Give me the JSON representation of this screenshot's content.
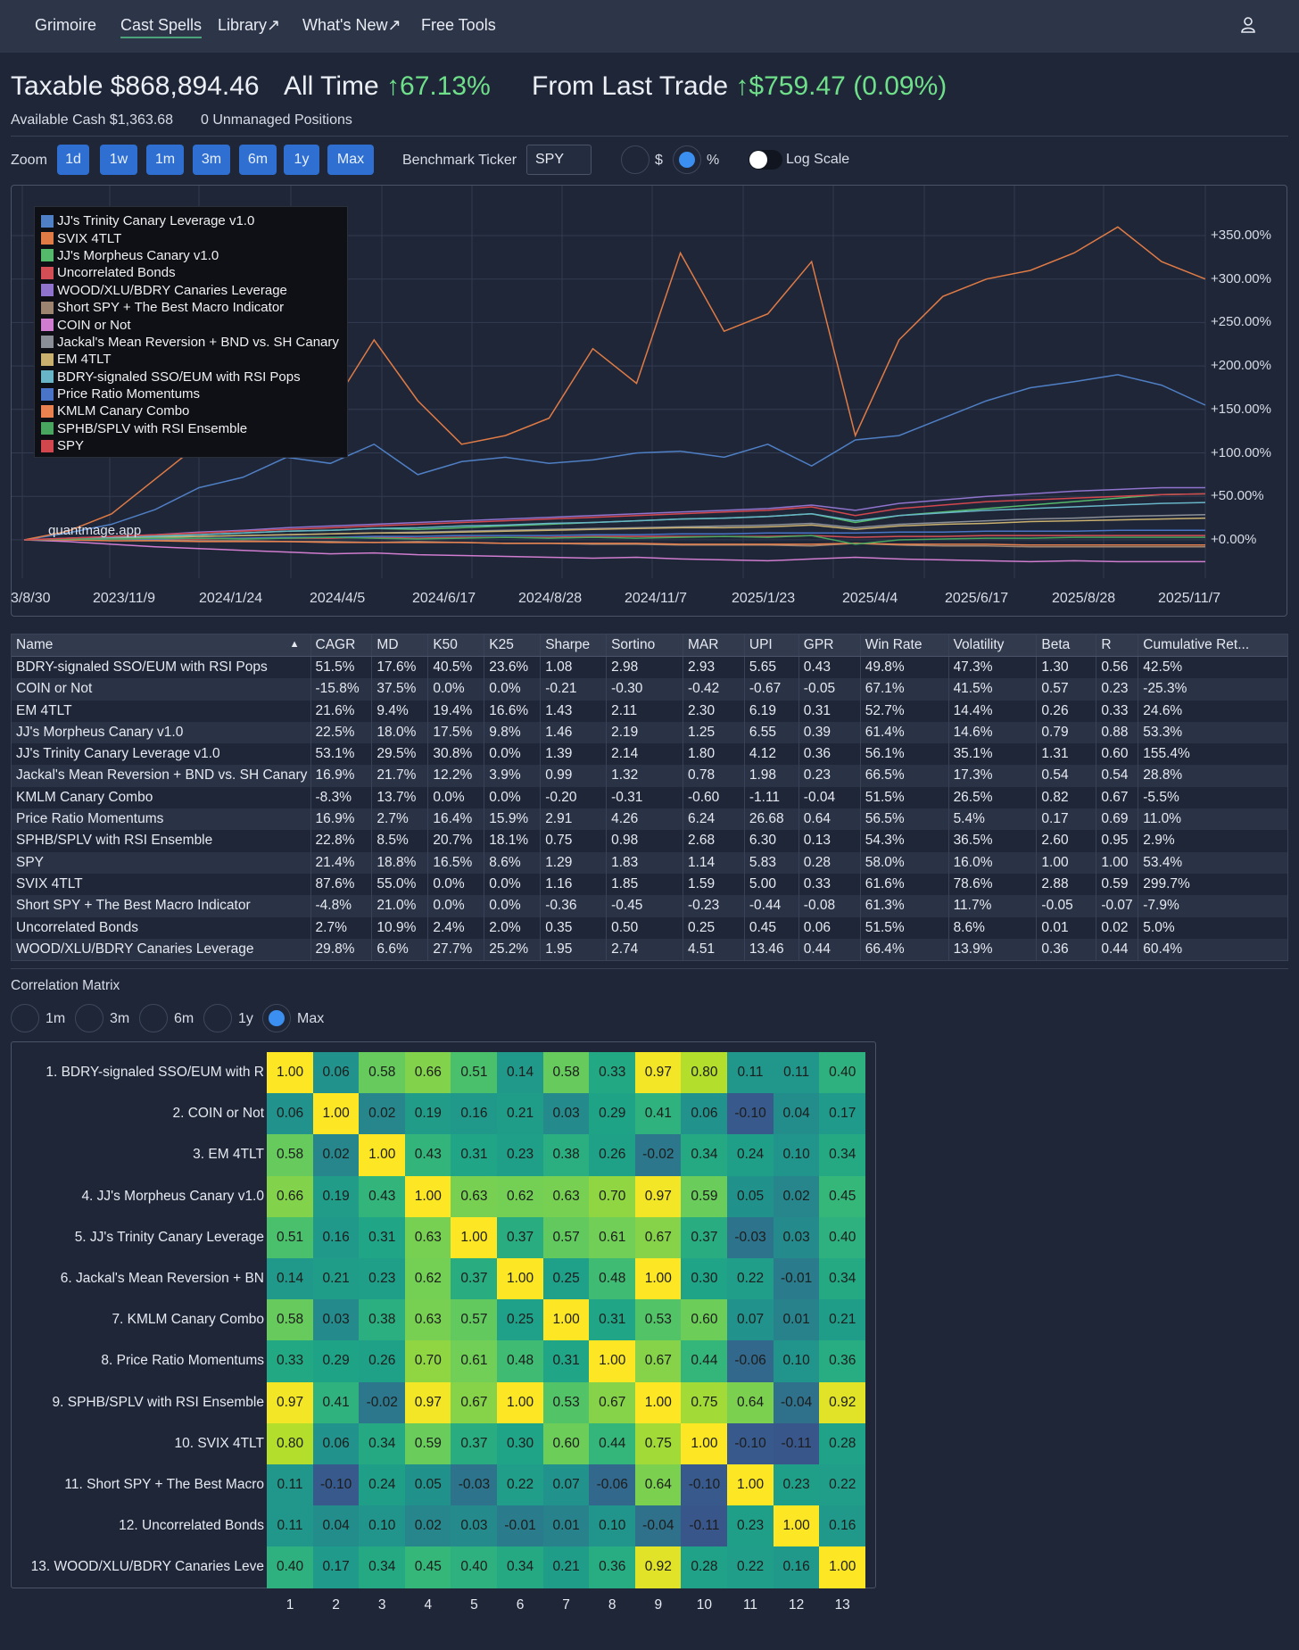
{
  "nav": {
    "items": [
      "Grimoire",
      "Cast Spells",
      "Library↗",
      "What's New↗",
      "Free Tools"
    ],
    "active": "Cast Spells",
    "user_icon": "user-icon"
  },
  "header": {
    "account_label": "Taxable",
    "account_value": "$868,894.46",
    "all_time_label": "All Time",
    "all_time_value": "67.13%",
    "last_trade_label": "From Last Trade",
    "last_trade_value": "$759.47 (0.09%)",
    "up_arrow": "↑",
    "available_cash": "Available Cash $1,363.68",
    "unmanaged": "0 Unmanaged Positions"
  },
  "controls": {
    "zoom_label": "Zoom",
    "zoom_options": [
      "1d",
      "1w",
      "1m",
      "3m",
      "6m",
      "1y",
      "Max"
    ],
    "benchmark_label": "Benchmark Ticker",
    "benchmark_value": "SPY",
    "mode_dollar": "$",
    "mode_percent": "%",
    "mode_selected": "%",
    "log_scale_label": "Log Scale",
    "log_scale_on": false
  },
  "chart_data": {
    "type": "line",
    "x_ticks": [
      "3/8/30",
      "2023/11/9",
      "2024/1/24",
      "2024/4/5",
      "2024/6/17",
      "2024/8/28",
      "2024/11/7",
      "2025/1/23",
      "2025/4/4",
      "2025/6/17",
      "2025/8/28",
      "2025/11/7"
    ],
    "y_ticks": [
      "+350.00%",
      "+300.00%",
      "+250.00%",
      "+200.00%",
      "+150.00%",
      "+100.00%",
      "+50.00%",
      "+0.00%"
    ],
    "ylim": [
      -30,
      380
    ],
    "watermark": "quantmage.app",
    "series": [
      {
        "name": "JJ's Trinity Canary Leverage v1.0",
        "color": "#4f7fc4",
        "values": [
          0,
          8,
          18,
          35,
          60,
          72,
          95,
          88,
          110,
          75,
          90,
          95,
          88,
          92,
          100,
          102,
          95,
          110,
          85,
          115,
          120,
          140,
          160,
          175,
          182,
          190,
          178,
          155
        ]
      },
      {
        "name": "SVIX 4TLT",
        "color": "#e07b45",
        "values": [
          0,
          10,
          30,
          70,
          110,
          140,
          180,
          150,
          230,
          160,
          110,
          120,
          140,
          220,
          180,
          330,
          240,
          260,
          320,
          120,
          230,
          280,
          300,
          310,
          330,
          360,
          320,
          300
        ]
      },
      {
        "name": "JJ's Morpheus Canary v1.0",
        "color": "#54b96a",
        "values": [
          0,
          1,
          3,
          5,
          6,
          8,
          10,
          11,
          13,
          12,
          14,
          16,
          18,
          20,
          22,
          24,
          25,
          27,
          30,
          20,
          28,
          32,
          36,
          40,
          44,
          48,
          52,
          53
        ]
      },
      {
        "name": "Uncorrelated Bonds",
        "color": "#d44f55",
        "values": [
          0,
          0,
          1,
          1,
          1,
          2,
          2,
          2,
          3,
          2,
          3,
          3,
          3,
          4,
          4,
          4,
          4,
          4,
          5,
          3,
          4,
          4,
          5,
          5,
          5,
          5,
          5,
          5
        ]
      },
      {
        "name": "WOOD/XLU/BDRY Canaries Leverage",
        "color": "#8f73cc",
        "values": [
          0,
          2,
          4,
          6,
          9,
          11,
          14,
          16,
          18,
          20,
          22,
          24,
          26,
          28,
          30,
          32,
          34,
          36,
          40,
          34,
          42,
          46,
          50,
          53,
          56,
          58,
          60,
          60
        ]
      },
      {
        "name": "Short SPY + The Best Macro Indicator",
        "color": "#9c8470",
        "values": [
          0,
          1,
          1,
          0,
          -1,
          -1,
          -2,
          -2,
          -3,
          -2,
          -3,
          -4,
          -4,
          -5,
          -5,
          -6,
          -6,
          -6,
          -7,
          -4,
          -6,
          -7,
          -7,
          -8,
          -8,
          -8,
          -8,
          -8
        ]
      },
      {
        "name": "COIN or Not",
        "color": "#d07ccf",
        "values": [
          0,
          -2,
          -5,
          -8,
          -10,
          -12,
          -14,
          -16,
          -15,
          -17,
          -18,
          -19,
          -20,
          -21,
          -20,
          -22,
          -23,
          -24,
          -22,
          -20,
          -22,
          -23,
          -24,
          -25,
          -24,
          -25,
          -25,
          -25
        ]
      },
      {
        "name": "Jackal's Mean Reversion + BND vs. SH Canary",
        "color": "#8a8e96",
        "values": [
          0,
          1,
          2,
          3,
          4,
          5,
          6,
          7,
          8,
          9,
          10,
          11,
          12,
          13,
          14,
          15,
          16,
          17,
          19,
          14,
          18,
          20,
          22,
          24,
          25,
          27,
          28,
          29
        ]
      },
      {
        "name": "EM 4TLT",
        "color": "#c9b06e",
        "values": [
          0,
          1,
          2,
          3,
          4,
          5,
          6,
          7,
          8,
          8,
          9,
          10,
          11,
          12,
          13,
          14,
          14,
          15,
          17,
          12,
          16,
          18,
          19,
          21,
          22,
          23,
          24,
          25
        ]
      },
      {
        "name": "BDRY-signaled SSO/EUM with RSI Pops",
        "color": "#67b5c7",
        "values": [
          0,
          1,
          3,
          4,
          6,
          8,
          10,
          11,
          13,
          14,
          16,
          17,
          19,
          20,
          22,
          24,
          25,
          27,
          30,
          22,
          28,
          31,
          34,
          36,
          38,
          40,
          42,
          43
        ]
      },
      {
        "name": "Price Ratio Momentums",
        "color": "#4a74c7",
        "values": [
          0,
          0,
          1,
          1,
          2,
          2,
          3,
          3,
          4,
          4,
          5,
          5,
          5,
          6,
          6,
          7,
          7,
          8,
          8,
          8,
          9,
          9,
          10,
          10,
          10,
          11,
          11,
          11
        ]
      },
      {
        "name": "KMLM Canary Combo",
        "color": "#e9824f",
        "values": [
          0,
          0,
          -1,
          -1,
          -2,
          -2,
          -2,
          -3,
          -3,
          -3,
          -3,
          -4,
          -4,
          -4,
          -4,
          -5,
          -5,
          -5,
          -5,
          -4,
          -5,
          -5,
          -5,
          -6,
          -6,
          -6,
          -6,
          -6
        ]
      },
      {
        "name": "SPHB/SPLV with RSI Ensemble",
        "color": "#48a65e",
        "values": [
          0,
          1,
          1,
          2,
          2,
          1,
          2,
          3,
          2,
          1,
          2,
          3,
          2,
          3,
          2,
          3,
          4,
          3,
          5,
          -5,
          0,
          1,
          2,
          2,
          3,
          3,
          3,
          3
        ]
      },
      {
        "name": "SPY",
        "color": "#d2474e",
        "values": [
          0,
          2,
          4,
          6,
          8,
          10,
          12,
          14,
          16,
          18,
          20,
          22,
          24,
          26,
          28,
          30,
          32,
          34,
          38,
          28,
          36,
          40,
          44,
          46,
          48,
          50,
          52,
          53
        ]
      }
    ]
  },
  "stats": {
    "columns": [
      "Name",
      "CAGR",
      "MD",
      "K50",
      "K25",
      "Sharpe",
      "Sortino",
      "MAR",
      "UPI",
      "GPR",
      "Win Rate",
      "Volatility",
      "Beta",
      "R",
      "Cumulative Ret..."
    ],
    "sort_icon": "sort-asc-icon",
    "rows": [
      [
        "BDRY-signaled SSO/EUM with RSI Pops",
        "51.5%",
        "17.6%",
        "40.5%",
        "23.6%",
        "1.08",
        "2.98",
        "2.93",
        "5.65",
        "0.43",
        "49.8%",
        "47.3%",
        "1.30",
        "0.56",
        "42.5%"
      ],
      [
        "COIN or Not",
        "-15.8%",
        "37.5%",
        "0.0%",
        "0.0%",
        "-0.21",
        "-0.30",
        "-0.42",
        "-0.67",
        "-0.05",
        "67.1%",
        "41.5%",
        "0.57",
        "0.23",
        "-25.3%"
      ],
      [
        "EM 4TLT",
        "21.6%",
        "9.4%",
        "19.4%",
        "16.6%",
        "1.43",
        "2.11",
        "2.30",
        "6.19",
        "0.31",
        "52.7%",
        "14.4%",
        "0.26",
        "0.33",
        "24.6%"
      ],
      [
        "JJ's Morpheus Canary v1.0",
        "22.5%",
        "18.0%",
        "17.5%",
        "9.8%",
        "1.46",
        "2.19",
        "1.25",
        "6.55",
        "0.39",
        "61.4%",
        "14.6%",
        "0.79",
        "0.88",
        "53.3%"
      ],
      [
        "JJ's Trinity Canary Leverage v1.0",
        "53.1%",
        "29.5%",
        "30.8%",
        "0.0%",
        "1.39",
        "2.14",
        "1.80",
        "4.12",
        "0.36",
        "56.1%",
        "35.1%",
        "1.31",
        "0.60",
        "155.4%"
      ],
      [
        "Jackal's Mean Reversion + BND vs. SH Canary",
        "16.9%",
        "21.7%",
        "12.2%",
        "3.9%",
        "0.99",
        "1.32",
        "0.78",
        "1.98",
        "0.23",
        "66.5%",
        "17.3%",
        "0.54",
        "0.54",
        "28.8%"
      ],
      [
        "KMLM Canary Combo",
        "-8.3%",
        "13.7%",
        "0.0%",
        "0.0%",
        "-0.20",
        "-0.31",
        "-0.60",
        "-1.11",
        "-0.04",
        "51.5%",
        "26.5%",
        "0.82",
        "0.67",
        "-5.5%"
      ],
      [
        "Price Ratio Momentums",
        "16.9%",
        "2.7%",
        "16.4%",
        "15.9%",
        "2.91",
        "4.26",
        "6.24",
        "26.68",
        "0.64",
        "56.5%",
        "5.4%",
        "0.17",
        "0.69",
        "11.0%"
      ],
      [
        "SPHB/SPLV with RSI Ensemble",
        "22.8%",
        "8.5%",
        "20.7%",
        "18.1%",
        "0.75",
        "0.98",
        "2.68",
        "6.30",
        "0.13",
        "54.3%",
        "36.5%",
        "2.60",
        "0.95",
        "2.9%"
      ],
      [
        "SPY",
        "21.4%",
        "18.8%",
        "16.5%",
        "8.6%",
        "1.29",
        "1.83",
        "1.14",
        "5.83",
        "0.28",
        "58.0%",
        "16.0%",
        "1.00",
        "1.00",
        "53.4%"
      ],
      [
        "SVIX 4TLT",
        "87.6%",
        "55.0%",
        "0.0%",
        "0.0%",
        "1.16",
        "1.85",
        "1.59",
        "5.00",
        "0.33",
        "61.6%",
        "78.6%",
        "2.88",
        "0.59",
        "299.7%"
      ],
      [
        "Short SPY + The Best Macro Indicator",
        "-4.8%",
        "21.0%",
        "0.0%",
        "0.0%",
        "-0.36",
        "-0.45",
        "-0.23",
        "-0.44",
        "-0.08",
        "61.3%",
        "11.7%",
        "-0.05",
        "-0.07",
        "-7.9%"
      ],
      [
        "Uncorrelated Bonds",
        "2.7%",
        "10.9%",
        "2.4%",
        "2.0%",
        "0.35",
        "0.50",
        "0.25",
        "0.45",
        "0.06",
        "51.5%",
        "8.6%",
        "0.01",
        "0.02",
        "5.0%"
      ],
      [
        "WOOD/XLU/BDRY Canaries Leverage",
        "29.8%",
        "6.6%",
        "27.7%",
        "25.2%",
        "1.95",
        "2.74",
        "4.51",
        "13.46",
        "0.44",
        "66.4%",
        "13.9%",
        "0.36",
        "0.44",
        "60.4%"
      ]
    ]
  },
  "correlation": {
    "title": "Correlation Matrix",
    "periods": [
      "1m",
      "3m",
      "6m",
      "1y",
      "Max"
    ],
    "selected_period": "Max",
    "row_labels": [
      "1. BDRY-signaled SSO/EUM with R",
      "2. COIN or Not",
      "3. EM 4TLT",
      "4. JJ's Morpheus Canary v1.0",
      "5. JJ's Trinity Canary Leverage",
      "6. Jackal's Mean Reversion + BN",
      "7. KMLM Canary Combo",
      "8. Price Ratio Momentums",
      "9. SPHB/SPLV with RSI Ensemble",
      "10. SVIX 4TLT",
      "11. Short SPY + The Best Macro",
      "12. Uncorrelated Bonds",
      "13. WOOD/XLU/BDRY Canaries Leve"
    ],
    "col_labels": [
      "1",
      "2",
      "3",
      "4",
      "5",
      "6",
      "7",
      "8",
      "9",
      "10",
      "11",
      "12",
      "13"
    ],
    "matrix": [
      [
        "1.00",
        "0.06",
        "0.58",
        "0.66",
        "0.51",
        "0.14",
        "0.58",
        "0.33",
        "0.97",
        "0.80",
        "0.11",
        "0.11",
        "0.40"
      ],
      [
        "0.06",
        "1.00",
        "0.02",
        "0.19",
        "0.16",
        "0.21",
        "0.03",
        "0.29",
        "0.41",
        "0.06",
        "-0.10",
        "0.04",
        "0.17"
      ],
      [
        "0.58",
        "0.02",
        "1.00",
        "0.43",
        "0.31",
        "0.23",
        "0.38",
        "0.26",
        "-0.02",
        "0.34",
        "0.24",
        "0.10",
        "0.34"
      ],
      [
        "0.66",
        "0.19",
        "0.43",
        "1.00",
        "0.63",
        "0.62",
        "0.63",
        "0.70",
        "0.97",
        "0.59",
        "0.05",
        "0.02",
        "0.45"
      ],
      [
        "0.51",
        "0.16",
        "0.31",
        "0.63",
        "1.00",
        "0.37",
        "0.57",
        "0.61",
        "0.67",
        "0.37",
        "-0.03",
        "0.03",
        "0.40"
      ],
      [
        "0.14",
        "0.21",
        "0.23",
        "0.62",
        "0.37",
        "1.00",
        "0.25",
        "0.48",
        "1.00",
        "0.30",
        "0.22",
        "-0.01",
        "0.34"
      ],
      [
        "0.58",
        "0.03",
        "0.38",
        "0.63",
        "0.57",
        "0.25",
        "1.00",
        "0.31",
        "0.53",
        "0.60",
        "0.07",
        "0.01",
        "0.21"
      ],
      [
        "0.33",
        "0.29",
        "0.26",
        "0.70",
        "0.61",
        "0.48",
        "0.31",
        "1.00",
        "0.67",
        "0.44",
        "-0.06",
        "0.10",
        "0.36"
      ],
      [
        "0.97",
        "0.41",
        "-0.02",
        "0.97",
        "0.67",
        "1.00",
        "0.53",
        "0.67",
        "1.00",
        "0.75",
        "0.64",
        "-0.04",
        "0.92"
      ],
      [
        "0.80",
        "0.06",
        "0.34",
        "0.59",
        "0.37",
        "0.30",
        "0.60",
        "0.44",
        "0.75",
        "1.00",
        "-0.10",
        "-0.11",
        "0.28"
      ],
      [
        "0.11",
        "-0.10",
        "0.24",
        "0.05",
        "-0.03",
        "0.22",
        "0.07",
        "-0.06",
        "0.64",
        "-0.10",
        "1.00",
        "0.23",
        "0.22"
      ],
      [
        "0.11",
        "0.04",
        "0.10",
        "0.02",
        "0.03",
        "-0.01",
        "0.01",
        "0.10",
        "-0.04",
        "-0.11",
        "0.23",
        "1.00",
        "0.16"
      ],
      [
        "0.40",
        "0.17",
        "0.34",
        "0.45",
        "0.40",
        "0.34",
        "0.21",
        "0.36",
        "0.92",
        "0.28",
        "0.22",
        "0.16",
        "1.00"
      ]
    ]
  }
}
